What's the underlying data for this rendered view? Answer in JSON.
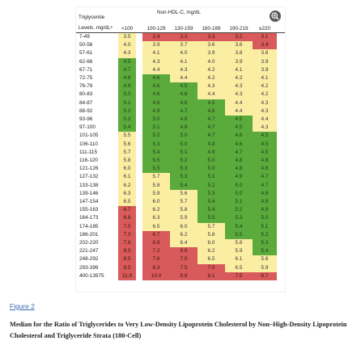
{
  "figure": {
    "table_title": "Non-HDL-C, mg/dL",
    "row_header_line1": "Triglyceride",
    "row_header_line2": "Levels, mg/dLᵃ",
    "expand_icon": "expand-icon",
    "columns": [
      "<100",
      "100-129",
      "130-159",
      "160-189",
      "190-219",
      "≥220"
    ],
    "colors": {
      "y": "#fbeea3",
      "r": "#d85a5a",
      "g": "#5aaa3c"
    },
    "rows": [
      {
        "label": "7-49",
        "values": [
          "3.5",
          "3.4",
          "3.3",
          "3.3",
          "3.2",
          "3.1"
        ],
        "colors": [
          "y",
          "r",
          "r",
          "r",
          "r",
          "r"
        ]
      },
      {
        "label": "50-56",
        "values": [
          "4.0",
          "3.9",
          "3.7",
          "3.6",
          "3.6",
          "3.4"
        ],
        "colors": [
          "y",
          "y",
          "y",
          "y",
          "y",
          "r"
        ]
      },
      {
        "label": "57-61",
        "values": [
          "4.3",
          "4.1",
          "4.0",
          "3.9",
          "3.8",
          "3.6"
        ],
        "colors": [
          "y",
          "y",
          "y",
          "y",
          "y",
          "y"
        ]
      },
      {
        "label": "62-66",
        "values": [
          "4.5",
          "4.3",
          "4.1",
          "4.0",
          "3.9",
          "3.9"
        ],
        "colors": [
          "g",
          "y",
          "y",
          "y",
          "y",
          "y"
        ]
      },
      {
        "label": "67-71",
        "values": [
          "4.7",
          "4.4",
          "4.3",
          "4.2",
          "4.1",
          "3.9"
        ],
        "colors": [
          "g",
          "y",
          "y",
          "y",
          "y",
          "y"
        ]
      },
      {
        "label": "72-75",
        "values": [
          "4.8",
          "4.6",
          "4.4",
          "4.2",
          "4.2",
          "4.1"
        ],
        "colors": [
          "g",
          "g",
          "y",
          "y",
          "y",
          "y"
        ]
      },
      {
        "label": "76-79",
        "values": [
          "4.9",
          "4.6",
          "4.5",
          "4.3",
          "4.3",
          "4.2"
        ],
        "colors": [
          "g",
          "g",
          "g",
          "y",
          "y",
          "y"
        ]
      },
      {
        "label": "80-83",
        "values": [
          "5.0",
          "4.8",
          "4.6",
          "4.4",
          "4.3",
          "4.2"
        ],
        "colors": [
          "g",
          "g",
          "g",
          "y",
          "y",
          "y"
        ]
      },
      {
        "label": "84-87",
        "values": [
          "5.1",
          "4.8",
          "4.6",
          "4.5",
          "4.4",
          "4.3"
        ],
        "colors": [
          "g",
          "g",
          "g",
          "g",
          "y",
          "y"
        ]
      },
      {
        "label": "88-92",
        "values": [
          "5.2",
          "4.9",
          "4.7",
          "4.6",
          "4.4",
          "4.3"
        ],
        "colors": [
          "g",
          "g",
          "g",
          "g",
          "y",
          "y"
        ]
      },
      {
        "label": "93-96",
        "values": [
          "5.3",
          "5.0",
          "4.8",
          "4.7",
          "4.5",
          "4.4"
        ],
        "colors": [
          "g",
          "g",
          "g",
          "g",
          "g",
          "y"
        ]
      },
      {
        "label": "97-100",
        "values": [
          "5.4",
          "5.1",
          "4.8",
          "4.7",
          "4.5",
          "4.3"
        ],
        "colors": [
          "g",
          "g",
          "g",
          "g",
          "g",
          "y"
        ]
      },
      {
        "label": "101-105",
        "values": [
          "5.5",
          "5.2",
          "5.0",
          "4.7",
          "4.6",
          "4.5"
        ],
        "colors": [
          "y",
          "g",
          "g",
          "g",
          "g",
          "g"
        ]
      },
      {
        "label": "106-110",
        "values": [
          "5.6",
          "5.3",
          "5.0",
          "4.8",
          "4.6",
          "4.5"
        ],
        "colors": [
          "y",
          "g",
          "g",
          "g",
          "g",
          "g"
        ]
      },
      {
        "label": "111-115",
        "values": [
          "5.7",
          "5.4",
          "5.1",
          "4.9",
          "4.7",
          "4.5"
        ],
        "colors": [
          "y",
          "g",
          "g",
          "g",
          "g",
          "g"
        ]
      },
      {
        "label": "116-120",
        "values": [
          "5.8",
          "5.5",
          "5.2",
          "5.0",
          "4.8",
          "4.6"
        ],
        "colors": [
          "y",
          "g",
          "g",
          "g",
          "g",
          "g"
        ]
      },
      {
        "label": "121-126",
        "values": [
          "6.0",
          "5.5",
          "5.3",
          "5.0",
          "4.8",
          "4.6"
        ],
        "colors": [
          "y",
          "g",
          "g",
          "g",
          "g",
          "g"
        ]
      },
      {
        "label": "127-132",
        "values": [
          "6.1",
          "5.7",
          "5.3",
          "5.1",
          "4.9",
          "4.7"
        ],
        "colors": [
          "y",
          "y",
          "g",
          "g",
          "g",
          "g"
        ]
      },
      {
        "label": "133-138",
        "values": [
          "6.2",
          "5.8",
          "5.4",
          "5.2",
          "5.0",
          "4.7"
        ],
        "colors": [
          "y",
          "y",
          "g",
          "g",
          "g",
          "g"
        ]
      },
      {
        "label": "139-146",
        "values": [
          "6.3",
          "5.9",
          "5.6",
          "5.3",
          "5.0",
          "4.8"
        ],
        "colors": [
          "y",
          "y",
          "y",
          "g",
          "g",
          "g"
        ]
      },
      {
        "label": "147-154",
        "values": [
          "6.5",
          "6.0",
          "5.7",
          "5.4",
          "5.1",
          "4.8"
        ],
        "colors": [
          "y",
          "y",
          "y",
          "g",
          "g",
          "g"
        ]
      },
      {
        "label": "155-163",
        "values": [
          "6.7",
          "6.2",
          "5.8",
          "5.4",
          "5.2",
          "4.9"
        ],
        "colors": [
          "r",
          "y",
          "y",
          "g",
          "g",
          "g"
        ]
      },
      {
        "label": "164-173",
        "values": [
          "6.8",
          "6.3",
          "5.9",
          "5.5",
          "5.3",
          "5.0"
        ],
        "colors": [
          "r",
          "y",
          "y",
          "g",
          "g",
          "g"
        ]
      },
      {
        "label": "174-185",
        "values": [
          "7.0",
          "6.5",
          "6.0",
          "5.7",
          "5.4",
          "5.1"
        ],
        "colors": [
          "r",
          "y",
          "y",
          "y",
          "g",
          "g"
        ]
      },
      {
        "label": "186-201",
        "values": [
          "7.3",
          "6.7",
          "6.2",
          "5.8",
          "5.5",
          "5.2"
        ],
        "colors": [
          "r",
          "r",
          "y",
          "y",
          "g",
          "g"
        ]
      },
      {
        "label": "202-220",
        "values": [
          "7.6",
          "6.9",
          "6.4",
          "6.0",
          "5.6",
          "5.3"
        ],
        "colors": [
          "r",
          "r",
          "y",
          "y",
          "y",
          "g"
        ]
      },
      {
        "label": "221-247",
        "values": [
          "8.0",
          "7.2",
          "6.6",
          "6.2",
          "5.9",
          "5.4"
        ],
        "colors": [
          "r",
          "r",
          "r",
          "y",
          "y",
          "g"
        ]
      },
      {
        "label": "248-292",
        "values": [
          "8.5",
          "7.6",
          "7.0",
          "6.5",
          "6.1",
          "5.6"
        ],
        "colors": [
          "r",
          "r",
          "r",
          "y",
          "y",
          "y"
        ]
      },
      {
        "label": "293-399",
        "values": [
          "9.5",
          "8.3",
          "7.5",
          "7.0",
          "6.5",
          "5.9"
        ],
        "colors": [
          "r",
          "r",
          "r",
          "r",
          "y",
          "y"
        ]
      },
      {
        "label": "400-13975",
        "values": [
          "11.9",
          "10.0",
          "8.8",
          "8.1",
          "7.5",
          "6.7"
        ],
        "colors": [
          "r",
          "r",
          "r",
          "r",
          "r",
          "r"
        ]
      }
    ]
  },
  "figure_link": "Figure 2",
  "caption": "Median for the Ratio of Triglycerides to Very Low-Density Lipoprotein Cholesterol by Non–High-Density Lipoprotein Cholesterol and Triglyceride Strata (180-Cell)"
}
